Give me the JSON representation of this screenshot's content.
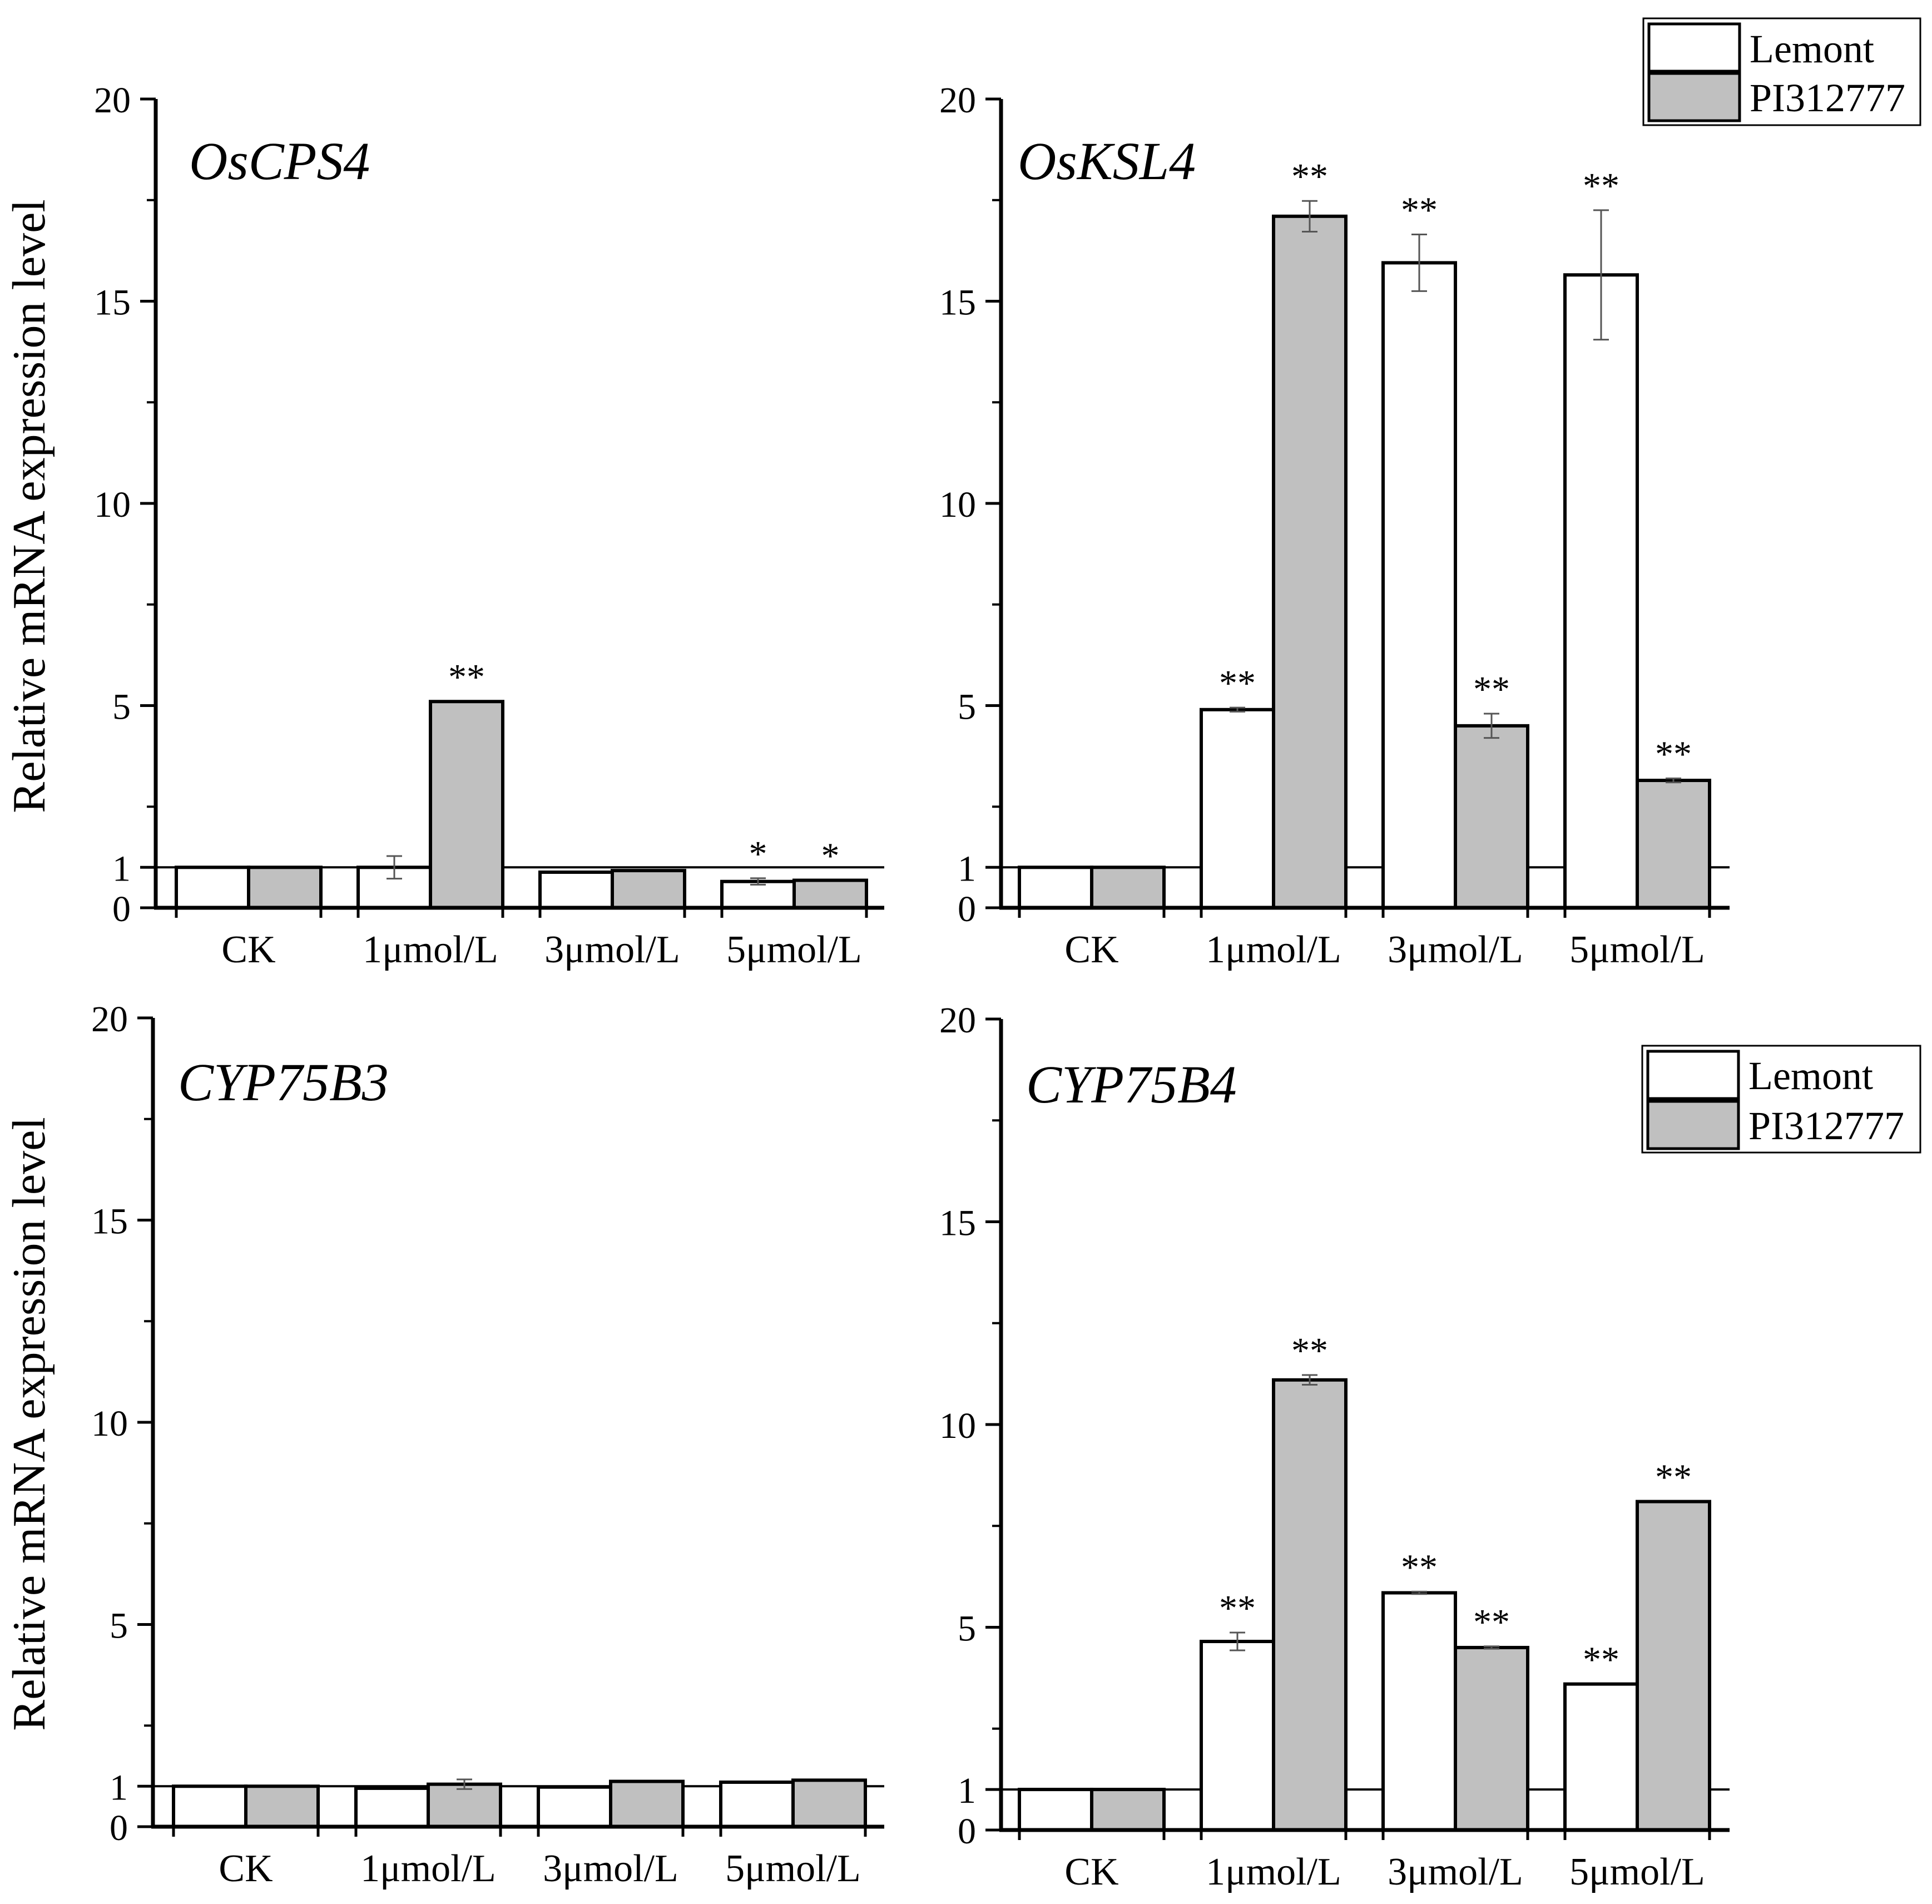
{
  "y_axis_label": "Relative mRNA expression level",
  "legend": {
    "series_names": [
      "Lemont",
      "PI312777"
    ],
    "colors": [
      "#ffffff",
      "#c0c0c0"
    ]
  },
  "chart_data": [
    {
      "type": "bar",
      "title": "OsCPS4",
      "categories": [
        "CK",
        "1μmol/L",
        "3μmol/L",
        "5μmol/L"
      ],
      "ylabel": "Relative mRNA expression level",
      "ylim": [
        0,
        20
      ],
      "yticks": [
        "20",
        "15",
        "10",
        "5",
        "1",
        "0"
      ],
      "reference_line": 1,
      "series": [
        {
          "name": "Lemont",
          "values": [
            1.0,
            1.0,
            0.88,
            0.65
          ],
          "errors": [
            0,
            0.28,
            0,
            0.08
          ],
          "marks": [
            "",
            "",
            "",
            "*"
          ]
        },
        {
          "name": "PI312777",
          "values": [
            1.0,
            5.1,
            0.92,
            0.68
          ],
          "errors": [
            0,
            0,
            0,
            0
          ],
          "marks": [
            "",
            "**",
            "",
            "*"
          ]
        }
      ]
    },
    {
      "type": "bar",
      "title": "OsKSL4",
      "categories": [
        "CK",
        "1μmol/L",
        "3μmol/L",
        "5μmol/L"
      ],
      "ylabel": "",
      "ylim": [
        0,
        20
      ],
      "yticks": [
        "20",
        "15",
        "10",
        "5",
        "1",
        "0"
      ],
      "reference_line": 1,
      "series": [
        {
          "name": "Lemont",
          "values": [
            1.0,
            4.9,
            15.95,
            15.65
          ],
          "errors": [
            0,
            0.05,
            0.7,
            1.6
          ],
          "marks": [
            "",
            "**",
            "**",
            "**"
          ]
        },
        {
          "name": "PI312777",
          "values": [
            1.0,
            17.1,
            4.5,
            3.15
          ],
          "errors": [
            0,
            0.38,
            0.3,
            0.05
          ],
          "marks": [
            "",
            "**",
            "**",
            "**"
          ]
        }
      ]
    },
    {
      "type": "bar",
      "title": "CYP75B3",
      "categories": [
        "CK",
        "1μmol/L",
        "3μmol/L",
        "5μmol/L"
      ],
      "ylabel": "Relative mRNA expression level",
      "ylim": [
        0,
        20
      ],
      "yticks": [
        "20",
        "15",
        "10",
        "5",
        "1",
        "0"
      ],
      "reference_line": 1,
      "series": [
        {
          "name": "Lemont",
          "values": [
            1.0,
            0.95,
            0.98,
            1.1
          ],
          "errors": [
            0,
            0,
            0,
            0
          ],
          "marks": [
            "",
            "",
            "",
            ""
          ]
        },
        {
          "name": "PI312777",
          "values": [
            1.0,
            1.05,
            1.12,
            1.15
          ],
          "errors": [
            0,
            0.12,
            0,
            0
          ],
          "marks": [
            "",
            "",
            "",
            ""
          ]
        }
      ]
    },
    {
      "type": "bar",
      "title": "CYP75B4",
      "categories": [
        "CK",
        "1μmol/L",
        "3μmol/L",
        "5μmol/L"
      ],
      "ylabel": "",
      "ylim": [
        0,
        20
      ],
      "yticks": [
        "20",
        "15",
        "10",
        "5",
        "1",
        "0"
      ],
      "reference_line": 1,
      "series": [
        {
          "name": "Lemont",
          "values": [
            1.0,
            4.65,
            5.85,
            3.6
          ],
          "errors": [
            0,
            0.22,
            0.03,
            0
          ],
          "marks": [
            "",
            "**",
            "**",
            "**"
          ]
        },
        {
          "name": "PI312777",
          "values": [
            1.0,
            11.1,
            4.5,
            8.1
          ],
          "errors": [
            0,
            0.12,
            0.03,
            0
          ],
          "marks": [
            "",
            "**",
            "**",
            "**"
          ]
        }
      ]
    }
  ]
}
